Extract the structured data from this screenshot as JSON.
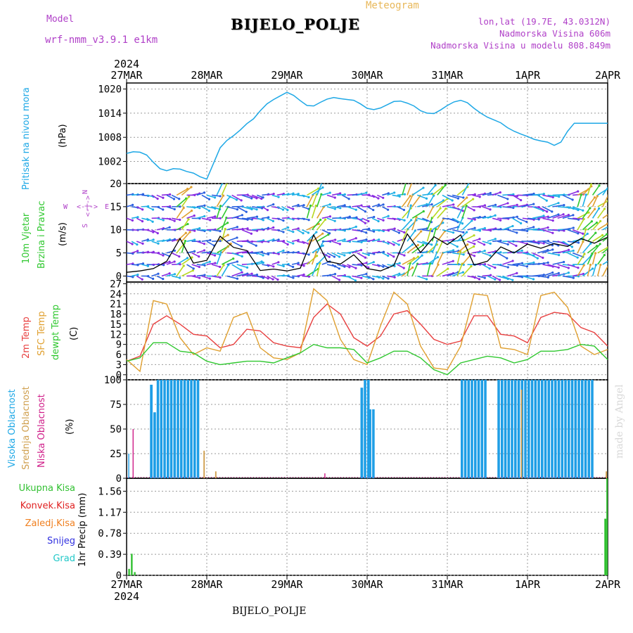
{
  "header": {
    "model_label": "Model",
    "model_name": "wrf-nmm_v3.9.1 e1km",
    "meteogram_label": "Meteogram",
    "station": "BIJELO_POLJE",
    "lonlat": "lon,lat (19.7E, 43.0312N)",
    "altitude": "Nadmorska Visina 606m",
    "model_altitude": "Nadmorska Visina u modelu 808.849m"
  },
  "footer": {
    "station": "BIJELO_POLJE",
    "credit": "made by Angel"
  },
  "colors": {
    "pressure": "#1ea8e6",
    "temp2m": "#e84040",
    "sfc": "#e0a030",
    "dewpt": "#30c830",
    "high_cloud": "#1e9ee6",
    "mid_cloud": "#d0a050",
    "low_cloud": "#d0208a",
    "precip_total": "#30c030",
    "precip_conv": "#e02020",
    "precip_frozen": "#f08020",
    "precip_snow": "#3030e0",
    "precip_grad": "#20c8c8"
  },
  "chart_data": [
    {
      "type": "line",
      "panel": "pressure",
      "ylabels": [
        "Pritisak na nivou mora",
        "(hPa)"
      ],
      "yticks": [
        1002,
        1008,
        1014,
        1020
      ],
      "ylim": [
        996.5,
        1021.5
      ],
      "xlabels_top": [
        "27MAR",
        "28MAR",
        "29MAR",
        "30MAR",
        "31MAR",
        "1APR",
        "2APR"
      ],
      "year_top": "2024",
      "grid": true,
      "x": [
        0,
        2,
        4,
        6,
        8,
        10,
        12,
        14,
        16,
        18,
        20,
        22,
        24,
        26,
        28,
        30,
        32,
        34,
        36,
        38,
        40,
        42,
        44,
        46,
        48,
        50,
        52,
        54,
        56,
        58,
        60,
        62,
        64,
        66,
        68,
        70,
        72,
        74,
        76,
        78,
        80,
        82,
        84,
        86,
        88,
        90,
        92,
        94,
        96,
        98,
        100,
        102,
        104,
        106,
        108,
        110,
        112,
        114,
        116,
        118,
        120,
        122,
        124,
        126,
        128,
        130,
        132,
        134,
        136,
        138,
        140,
        142,
        143,
        144
      ],
      "values": [
        1004,
        1004.4,
        1004.3,
        1003.6,
        1001.8,
        1000.2,
        999.7,
        1000.2,
        1000.1,
        999.5,
        999.1,
        998.2,
        997.6,
        1001.5,
        1005.4,
        1007.2,
        1008.4,
        1009.8,
        1011.4,
        1012.6,
        1014.6,
        1016.3,
        1017.4,
        1018.3,
        1019.2,
        1018.4,
        1017.1,
        1015.9,
        1015.8,
        1016.7,
        1017.5,
        1017.9,
        1017.6,
        1017.4,
        1017.2,
        1016.3,
        1015.2,
        1014.9,
        1015.3,
        1016.1,
        1016.9,
        1017,
        1016.5,
        1015.8,
        1014.6,
        1014,
        1013.9,
        1014.8,
        1015.9,
        1016.8,
        1017.2,
        1016.6,
        1015.2,
        1014,
        1013,
        1012.3,
        1011.6,
        1010.4,
        1009.5,
        1008.8,
        1008.2,
        1007.5,
        1007.1,
        1006.8,
        1006,
        1006.8,
        1009.5,
        1011.5,
        1011.5,
        1011.5,
        1011.5,
        1011.5,
        1011.5,
        1011.5
      ]
    },
    {
      "type": "line",
      "panel": "wind",
      "ylabels": [
        "10m Vjetar",
        "Brzina i Pravac",
        "(m/s)"
      ],
      "compass": {
        "n": "N",
        "s": "S",
        "w": "W",
        "e": "E",
        "arrow": "<-|->"
      },
      "yticks": [
        0,
        5,
        10,
        15,
        20
      ],
      "ylim": [
        -1.3,
        20
      ],
      "grid": true,
      "x": [
        0,
        4,
        8,
        12,
        16,
        20,
        24,
        28,
        32,
        36,
        40,
        44,
        48,
        52,
        56,
        60,
        64,
        68,
        72,
        76,
        80,
        84,
        88,
        92,
        96,
        100,
        104,
        108,
        112,
        116,
        120,
        124,
        128,
        132,
        136,
        140,
        144
      ],
      "values": [
        0.8,
        1.1,
        1.6,
        3.2,
        8.1,
        2.8,
        3.4,
        8.6,
        6.2,
        5.5,
        1.2,
        1.5,
        1.1,
        1.7,
        8.9,
        3.2,
        2.6,
        4.6,
        1.6,
        1.1,
        2.3,
        9.1,
        5.1,
        8.5,
        6.8,
        8.9,
        2.4,
        3.2,
        6.3,
        5.0,
        6.9,
        6.0,
        7.0,
        6.4,
        8.1,
        7.1,
        8.4
      ]
    },
    {
      "type": "line",
      "panel": "temperature",
      "ylabels": [
        "2m Temp",
        "SFC Temp",
        "dewpt Temp",
        "(C)"
      ],
      "yticks": [
        0,
        3,
        6,
        9,
        12,
        15,
        18,
        21,
        24,
        27
      ],
      "ylim": [
        -1.5,
        27.5
      ],
      "grid": true,
      "series": [
        {
          "name": "2m Temp",
          "x": [
            0,
            4,
            8,
            12,
            16,
            20,
            24,
            28,
            32,
            36,
            40,
            44,
            48,
            52,
            56,
            60,
            64,
            68,
            72,
            76,
            80,
            84,
            88,
            92,
            96,
            100,
            104,
            108,
            112,
            116,
            120,
            124,
            128,
            132,
            136,
            140,
            144
          ],
          "values": [
            4,
            5.5,
            15,
            17.5,
            15,
            12,
            11.5,
            8,
            9,
            13.5,
            13,
            9.5,
            8.5,
            8,
            17,
            21,
            18,
            11,
            8.5,
            11.5,
            18,
            19,
            15,
            10.5,
            9,
            10,
            17.5,
            17.5,
            12,
            11.5,
            9.5,
            17,
            18.5,
            18,
            14,
            12.5,
            8.5
          ]
        },
        {
          "name": "SFC Temp",
          "x": [
            0,
            4,
            8,
            12,
            16,
            20,
            24,
            28,
            32,
            36,
            40,
            44,
            48,
            52,
            56,
            60,
            64,
            68,
            72,
            76,
            80,
            84,
            88,
            92,
            96,
            100,
            104,
            108,
            112,
            116,
            120,
            124,
            128,
            132,
            136,
            140,
            144
          ],
          "values": [
            4.5,
            1,
            22,
            21,
            11,
            6,
            8,
            7,
            17,
            18.5,
            8,
            5,
            4.5,
            6.5,
            25.5,
            22,
            10.5,
            4.5,
            3,
            14.5,
            24.5,
            21,
            8.5,
            2,
            1.5,
            8.5,
            24,
            23.5,
            8,
            7.5,
            6,
            23.5,
            24.5,
            20,
            8.5,
            6,
            7.5
          ]
        },
        {
          "name": "dewpt Temp",
          "x": [
            0,
            4,
            8,
            12,
            16,
            20,
            24,
            28,
            32,
            36,
            40,
            44,
            48,
            52,
            56,
            60,
            64,
            68,
            72,
            76,
            80,
            84,
            88,
            92,
            96,
            100,
            104,
            108,
            112,
            116,
            120,
            124,
            128,
            132,
            136,
            140,
            144
          ],
          "values": [
            4,
            5,
            9.5,
            9.5,
            7,
            6.5,
            4,
            3,
            3.5,
            4,
            4,
            3.5,
            5,
            6.5,
            9,
            8,
            8,
            7.5,
            3.5,
            5,
            7,
            7,
            5,
            1.5,
            0,
            3.5,
            4.5,
            5.5,
            5,
            3.5,
            4.5,
            7,
            7,
            7.5,
            9,
            8.5,
            4.5
          ]
        }
      ]
    },
    {
      "type": "bar",
      "panel": "clouds",
      "ylabels": [
        "Visoka Oblacnost",
        "Srednja Oblacnost",
        "Niska Oblacnost",
        "(%)"
      ],
      "yticks": [
        0,
        25,
        50,
        75,
        100
      ],
      "ylim": [
        0,
        100
      ],
      "grid": true,
      "series": [
        {
          "name": "Visoka Oblacnost",
          "segments": [
            {
              "x_from": 0.5,
              "x_to": 1,
              "value": 25
            },
            {
              "x_from": 7,
              "x_to": 8,
              "value": 95
            },
            {
              "x_from": 8,
              "x_to": 9,
              "value": 67
            },
            {
              "x_from": 9,
              "x_to": 22,
              "value": 100
            },
            {
              "x_from": 70,
              "x_to": 71,
              "value": 92
            },
            {
              "x_from": 71,
              "x_to": 72.5,
              "value": 100
            },
            {
              "x_from": 72.5,
              "x_to": 74,
              "value": 70
            },
            {
              "x_from": 100,
              "x_to": 108,
              "value": 100
            },
            {
              "x_from": 111,
              "x_to": 140,
              "value": 100
            }
          ]
        },
        {
          "name": "Srednja Oblacnost",
          "segments": [
            {
              "x_from": 23,
              "x_to": 23.4,
              "value": 28
            },
            {
              "x_from": 26.5,
              "x_to": 26.9,
              "value": 7
            },
            {
              "x_from": 118,
              "x_to": 118.4,
              "value": 90
            },
            {
              "x_from": 143.4,
              "x_to": 143.8,
              "value": 7
            }
          ]
        },
        {
          "name": "Niska Oblacnost",
          "segments": [
            {
              "x_from": 1.8,
              "x_to": 2.1,
              "value": 50
            },
            {
              "x_from": 59.2,
              "x_to": 59.5,
              "value": 5
            }
          ]
        }
      ]
    },
    {
      "type": "bar",
      "panel": "precipitation",
      "ylabels": [
        "1hr Precip (mm)"
      ],
      "legend": [
        "Ukupna Kisa",
        "Konvek.Kisa",
        "Zaledj.Kisa",
        "Snijeg",
        "Grad"
      ],
      "yticks": [
        0,
        0.39,
        0.78,
        1.17,
        1.56
      ],
      "ylim": [
        0,
        1.8
      ],
      "xlabels_bottom": [
        "27MAR",
        "28MAR",
        "29MAR",
        "30MAR",
        "31MAR",
        "1APR",
        "2APR"
      ],
      "year_bottom": "2024",
      "grid": true,
      "series": [
        {
          "name": "Ukupna Kisa",
          "segments": [
            {
              "x_from": 0.5,
              "x_to": 1,
              "value": 0.12
            },
            {
              "x_from": 1.3,
              "x_to": 1.8,
              "value": 0.4
            },
            {
              "x_from": 2.2,
              "x_to": 2.7,
              "value": 0.06
            },
            {
              "x_from": 143,
              "x_to": 143.6,
              "value": 1.05
            },
            {
              "x_from": 143.6,
              "x_to": 144,
              "value": 1.8
            }
          ]
        }
      ]
    }
  ]
}
